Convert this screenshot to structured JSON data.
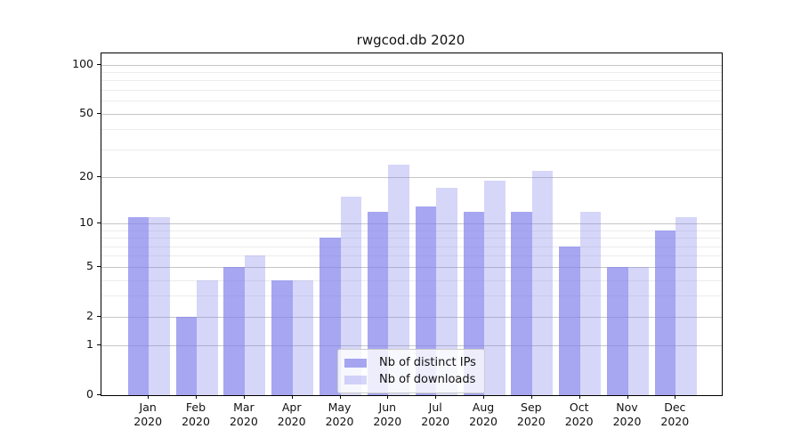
{
  "title": "rwgcod.db 2020",
  "chart_data": {
    "type": "bar",
    "title": "rwgcod.db 2020",
    "categories": [
      "Jan",
      "Feb",
      "Mar",
      "Apr",
      "May",
      "Jun",
      "Jul",
      "Aug",
      "Sep",
      "Oct",
      "Nov",
      "Dec"
    ],
    "x_year_label": "2020",
    "series": [
      {
        "name": "Nb of distinct IPs",
        "values": [
          11,
          2,
          5,
          4,
          8,
          12,
          13,
          12,
          12,
          7,
          5,
          9
        ],
        "color": "rgba(128,128,235,0.70)"
      },
      {
        "name": "Nb of downloads",
        "values": [
          11,
          4,
          6,
          4,
          15,
          24,
          17,
          19,
          22,
          12,
          5,
          11
        ],
        "color": "rgba(128,128,235,0.32)"
      }
    ],
    "y_scale": "log1p",
    "y_ticks": [
      0,
      1,
      2,
      5,
      10,
      20,
      50,
      100
    ],
    "y_minor_gridlines": [
      3,
      4,
      6,
      7,
      8,
      9,
      30,
      40,
      60,
      70,
      80,
      90
    ],
    "y_axis_top_value": 117,
    "ylim": [
      0,
      117
    ],
    "grid": true,
    "legend_position": "lower center",
    "colors": {
      "major_grid": "#c6c6c6",
      "minor_grid": "#ececec",
      "axis": "#000000",
      "text": "#111111",
      "legend_border": "#cccccc"
    }
  }
}
